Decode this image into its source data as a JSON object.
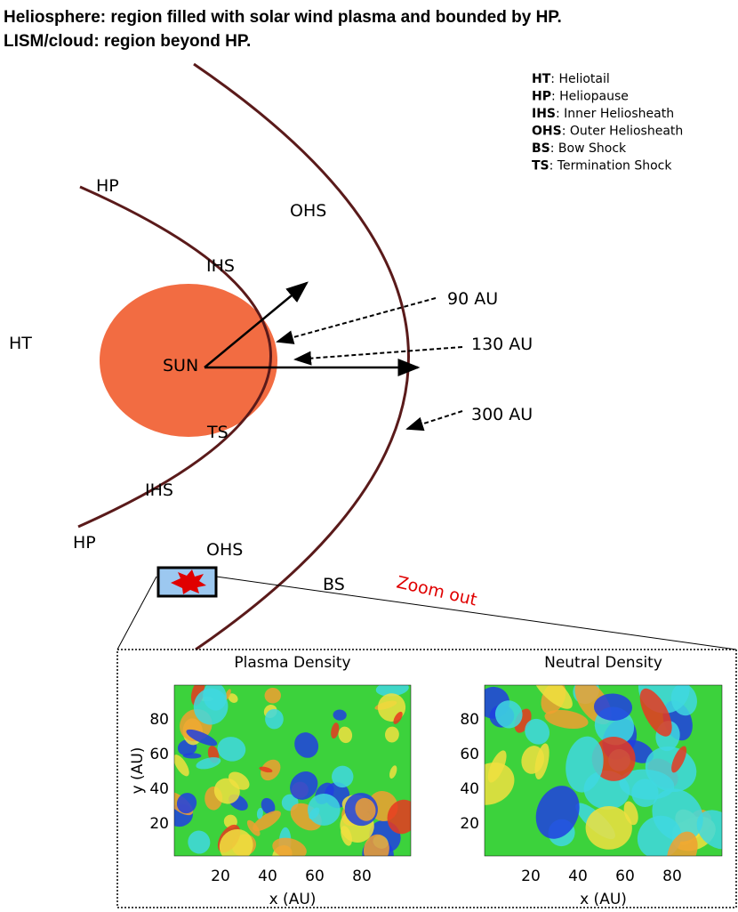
{
  "title": [
    "Heliosphere: region filled with solar wind plasma and bounded by HP.",
    "LISM/cloud: region beyond HP."
  ],
  "legend": [
    {
      "abbr": "HT",
      "text": ": Heliotail"
    },
    {
      "abbr": "HP",
      "text": ": Heliopause"
    },
    {
      "abbr": "IHS",
      "text": ": Inner Heliosheath"
    },
    {
      "abbr": "OHS",
      "text": ": Outer Heliosheath"
    },
    {
      "abbr": "BS",
      "text": ": Bow Shock"
    },
    {
      "abbr": "TS",
      "text": ": Termination Shock"
    }
  ],
  "labels": {
    "hp_top": "HP",
    "ohs_top": "OHS",
    "ihs_top": "IHS",
    "ht": "HT",
    "sun": "SUN",
    "ts": "TS",
    "ihs_bottom": "IHS",
    "hp_bottom": "HP",
    "ohs_bottom": "OHS",
    "bs": "BS",
    "zoom": "Zoom out"
  },
  "distances": [
    "90 AU",
    "130 AU",
    "300 AU"
  ],
  "plots": [
    {
      "title": "Plasma Density",
      "xlabel": "x (AU)",
      "ylabel": "y (AU)",
      "xticks": [
        "20",
        "40",
        "60",
        "80"
      ],
      "yticks": [
        "80",
        "60",
        "40",
        "20"
      ]
    },
    {
      "title": "Neutral Density",
      "xlabel": "x (AU)",
      "xticks": [
        "20",
        "40",
        "60",
        "80"
      ],
      "yticks": [
        "80",
        "60",
        "40",
        "20"
      ]
    }
  ]
}
